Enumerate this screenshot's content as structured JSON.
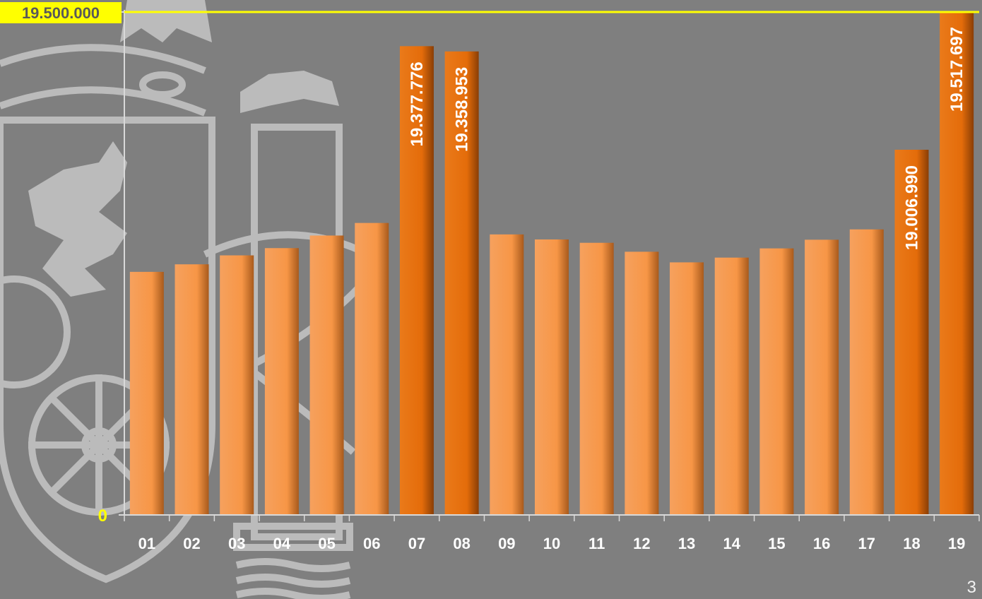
{
  "page": {
    "number": "3",
    "background": "#7f7f7f"
  },
  "chart_data": {
    "type": "bar",
    "title": "",
    "xlabel": "",
    "ylabel": "",
    "categories": [
      "01",
      "02",
      "03",
      "04",
      "05",
      "06",
      "07",
      "08",
      "09",
      "10",
      "11",
      "12",
      "13",
      "14",
      "15",
      "16",
      "17",
      "18",
      "19"
    ],
    "values": [
      18570000,
      18597000,
      18629000,
      18655000,
      18700000,
      18745000,
      19377776,
      19358953,
      18704000,
      18686000,
      18674000,
      18642000,
      18604000,
      18621000,
      18654000,
      18685000,
      18722000,
      19006990,
      19517697
    ],
    "highlight": [
      false,
      false,
      false,
      false,
      false,
      false,
      true,
      true,
      false,
      false,
      false,
      false,
      false,
      false,
      false,
      false,
      false,
      true,
      true
    ],
    "value_labels": [
      "",
      "",
      "",
      "",
      "",
      "",
      "19.377.776",
      "19.358.953",
      "",
      "",
      "",
      "",
      "",
      "",
      "",
      "",
      "",
      "19.006.990",
      "19.517.697"
    ],
    "reference_line": {
      "value": 19500000,
      "label": "19.500.000",
      "color": "#ffff00"
    },
    "y_tick_labels": {
      "min": "0"
    },
    "colors": {
      "normal": "#f79646",
      "highlight": "#e46c0a",
      "axis": "#d9d9d9",
      "text": "#ffffff",
      "min_label": "#ffff00"
    },
    "grid": false,
    "legend": "none"
  }
}
